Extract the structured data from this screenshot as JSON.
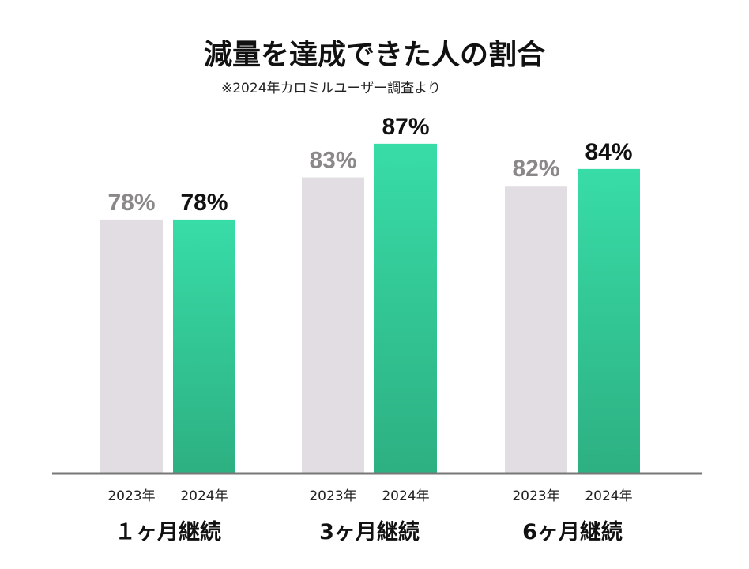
{
  "chart_data": {
    "type": "bar",
    "title": "減量を達成できた人の割合",
    "subtitle": "※2024年カロミルユーザー調査より",
    "categories": [
      "１ヶ月継続",
      "3ヶ月継続",
      "6ヶ月継続"
    ],
    "series": [
      {
        "name": "2023年",
        "values": [
          78,
          83,
          82
        ],
        "color": "#e2dde2",
        "label_color": "#8a8888"
      },
      {
        "name": "2024年",
        "values": [
          78,
          87,
          84
        ],
        "color": "#34d3a0",
        "label_color": "#111111"
      }
    ],
    "value_suffix": "%",
    "ylim": [
      48,
      100
    ],
    "xlabel": "",
    "ylabel": "",
    "grid": false
  }
}
